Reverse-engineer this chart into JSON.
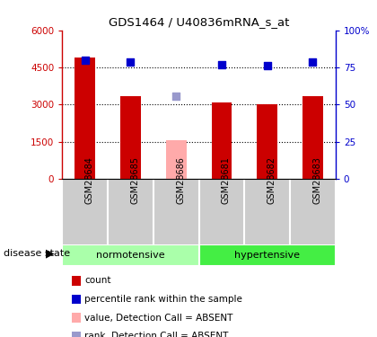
{
  "title": "GDS1464 / U40836mRNA_s_at",
  "samples": [
    "GSM28684",
    "GSM28685",
    "GSM28686",
    "GSM28681",
    "GSM28682",
    "GSM28683"
  ],
  "bar_values": [
    4900,
    3350,
    null,
    3100,
    3020,
    3350
  ],
  "bar_absent_values": [
    null,
    null,
    1570,
    null,
    null,
    null
  ],
  "bar_color": "#cc0000",
  "bar_absent_color": "#ffaaaa",
  "scatter_values": [
    4780,
    4720,
    null,
    4620,
    4560,
    4720
  ],
  "scatter_absent_values": [
    null,
    null,
    3320,
    null,
    null,
    null
  ],
  "scatter_color": "#0000cc",
  "scatter_absent_color": "#9999cc",
  "ylim_left": [
    0,
    6000
  ],
  "ylim_right": [
    0,
    100
  ],
  "yticks_left": [
    0,
    1500,
    3000,
    4500,
    6000
  ],
  "ytick_labels_left": [
    "0",
    "1500",
    "3000",
    "4500",
    "6000"
  ],
  "yticks_right": [
    0,
    25,
    50,
    75,
    100
  ],
  "ytick_labels_right": [
    "0",
    "25",
    "50",
    "75",
    "100%"
  ],
  "legend_items": [
    {
      "label": "count",
      "color": "#cc0000"
    },
    {
      "label": "percentile rank within the sample",
      "color": "#0000cc"
    },
    {
      "label": "value, Detection Call = ABSENT",
      "color": "#ffaaaa"
    },
    {
      "label": "rank, Detection Call = ABSENT",
      "color": "#9999cc"
    }
  ],
  "bg_norm_color": "#aaffaa",
  "bg_hyper_color": "#44ee44",
  "label_norm": "normotensive",
  "label_hyper": "hypertensive",
  "disease_state_label": "disease state",
  "bar_width": 0.45,
  "grid_color": "black",
  "grid_linestyle": ":",
  "grid_linewidth": 0.8,
  "label_bg_color": "#cccccc"
}
